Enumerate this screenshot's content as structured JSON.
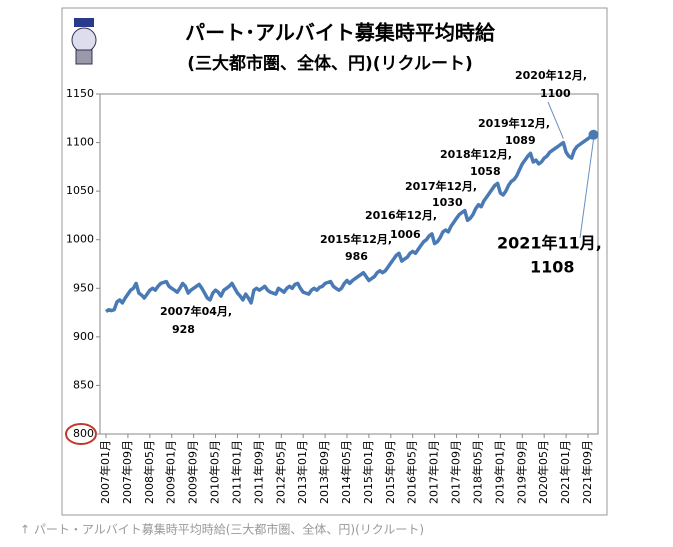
{
  "chart_data": {
    "type": "line",
    "title": "パート･アルバイト募集時平均時給",
    "subtitle": "(三大都市圏、全体、円)(リクルート)",
    "categories": [
      "2007年01月",
      null,
      null,
      null,
      null,
      null,
      null,
      null,
      "2007年09月",
      null,
      null,
      null,
      null,
      null,
      null,
      null,
      "2008年05月",
      null,
      null,
      null,
      null,
      null,
      null,
      null,
      "2009年01月",
      null,
      null,
      null,
      null,
      null,
      null,
      null,
      "2009年09月",
      null,
      null,
      null,
      null,
      null,
      null,
      null,
      "2010年05月",
      null,
      null,
      null,
      null,
      null,
      null,
      null,
      "2011年01月",
      null,
      null,
      null,
      null,
      null,
      null,
      null,
      "2011年09月",
      null,
      null,
      null,
      null,
      null,
      null,
      null,
      "2012年05月",
      null,
      null,
      null,
      null,
      null,
      null,
      null,
      "2013年01月",
      null,
      null,
      null,
      null,
      null,
      null,
      null,
      "2013年09月",
      null,
      null,
      null,
      null,
      null,
      null,
      null,
      "2014年05月",
      null,
      null,
      null,
      null,
      null,
      null,
      null,
      "2015年01月",
      null,
      null,
      null,
      null,
      null,
      null,
      null,
      "2015年09月",
      null,
      null,
      null,
      null,
      null,
      null,
      null,
      "2016年05月",
      null,
      null,
      null,
      null,
      null,
      null,
      null,
      "2017年01月",
      null,
      null,
      null,
      null,
      null,
      null,
      null,
      "2017年09月",
      null,
      null,
      null,
      null,
      null,
      null,
      null,
      "2018年05月",
      null,
      null,
      null,
      null,
      null,
      null,
      null,
      "2019年01月",
      null,
      null,
      null,
      null,
      null,
      null,
      null,
      "2019年09月",
      null,
      null,
      null,
      null,
      null,
      null,
      null,
      "2020年05月",
      null,
      null,
      null,
      null,
      null,
      null,
      null,
      "2021年01月",
      null,
      null,
      null,
      null,
      null,
      null,
      null,
      "2021年09月",
      null,
      null
    ],
    "values": [
      926,
      928,
      927,
      928,
      936,
      938,
      935,
      940,
      944,
      948,
      950,
      955,
      945,
      943,
      940,
      944,
      948,
      950,
      948,
      952,
      955,
      956,
      957,
      952,
      950,
      948,
      946,
      950,
      955,
      952,
      945,
      948,
      950,
      952,
      954,
      950,
      945,
      940,
      938,
      945,
      948,
      946,
      942,
      948,
      950,
      952,
      955,
      950,
      945,
      942,
      938,
      944,
      940,
      935,
      948,
      950,
      948,
      950,
      952,
      948,
      946,
      945,
      944,
      950,
      948,
      946,
      950,
      952,
      950,
      954,
      955,
      950,
      946,
      945,
      944,
      948,
      950,
      948,
      951,
      952,
      955,
      956,
      957,
      952,
      950,
      948,
      950,
      955,
      958,
      955,
      958,
      960,
      962,
      964,
      966,
      962,
      958,
      960,
      962,
      966,
      968,
      966,
      968,
      972,
      976,
      980,
      984,
      986,
      978,
      980,
      982,
      986,
      988,
      986,
      990,
      994,
      998,
      1000,
      1004,
      1006,
      996,
      998,
      1002,
      1008,
      1010,
      1008,
      1014,
      1018,
      1022,
      1026,
      1028,
      1030,
      1020,
      1022,
      1026,
      1032,
      1036,
      1034,
      1040,
      1044,
      1048,
      1052,
      1056,
      1058,
      1048,
      1046,
      1050,
      1056,
      1060,
      1062,
      1066,
      1072,
      1078,
      1082,
      1086,
      1089,
      1080,
      1082,
      1078,
      1080,
      1084,
      1086,
      1090,
      1092,
      1094,
      1096,
      1098,
      1100,
      1090,
      1086,
      1084,
      1092,
      1096,
      1098,
      1100,
      1102,
      1104,
      1106,
      1108
    ],
    "color": "#4a7ab5",
    "ylim": [
      800,
      1150
    ],
    "yticks": [
      800,
      850,
      900,
      950,
      1000,
      1050,
      1100,
      1150
    ],
    "annotations": [
      "2007年04月,",
      "2015年12月,",
      "2016年12月,",
      "2017年12月,",
      "2018年12月,",
      "2019年12月,",
      "2020年12月,",
      "2021年11月,"
    ]
  },
  "caption": "↑ パート・アルバイト募集時平均時給(三大都市圏、全体、円)(リクルート)"
}
